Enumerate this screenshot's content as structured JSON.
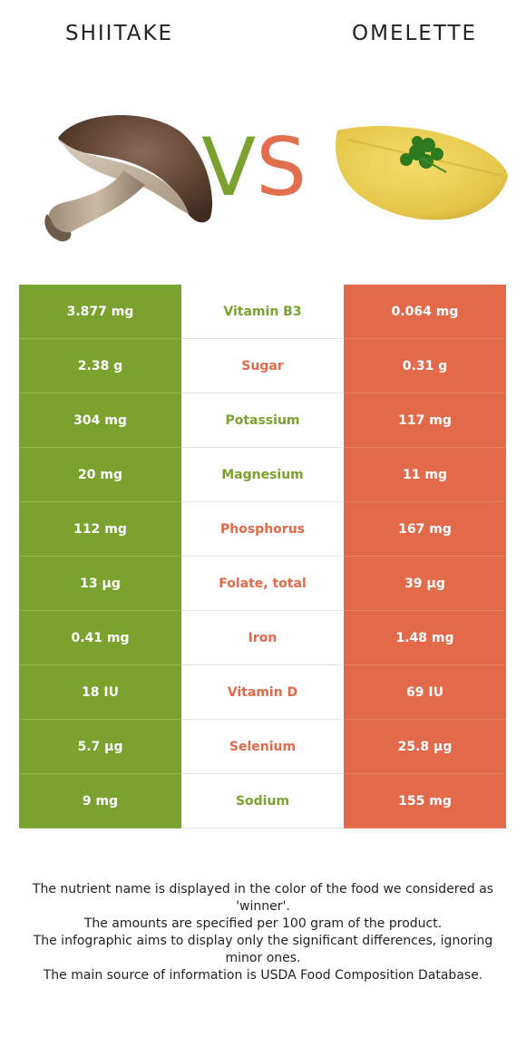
{
  "header": {
    "left_food": "SHIITAKE",
    "right_food": "OMELETTE",
    "vs_v": "V",
    "vs_s": "S"
  },
  "colors": {
    "left_winner": "#7aa22e",
    "right_winner": "#e2694a"
  },
  "rows": [
    {
      "left": "3.877 mg",
      "nutrient": "Vitamin B3",
      "right": "0.064 mg",
      "winner": "left"
    },
    {
      "left": "2.38 g",
      "nutrient": "Sugar",
      "right": "0.31 g",
      "winner": "right"
    },
    {
      "left": "304 mg",
      "nutrient": "Potassium",
      "right": "117 mg",
      "winner": "left"
    },
    {
      "left": "20 mg",
      "nutrient": "Magnesium",
      "right": "11 mg",
      "winner": "left"
    },
    {
      "left": "112 mg",
      "nutrient": "Phosphorus",
      "right": "167 mg",
      "winner": "right"
    },
    {
      "left": "13 µg",
      "nutrient": "Folate, total",
      "right": "39 µg",
      "winner": "right"
    },
    {
      "left": "0.41 mg",
      "nutrient": "Iron",
      "right": "1.48 mg",
      "winner": "right"
    },
    {
      "left": "18 IU",
      "nutrient": "Vitamin D",
      "right": "69 IU",
      "winner": "right"
    },
    {
      "left": "5.7 µg",
      "nutrient": "Selenium",
      "right": "25.8 µg",
      "winner": "right"
    },
    {
      "left": "9 mg",
      "nutrient": "Sodium",
      "right": "155 mg",
      "winner": "left"
    }
  ],
  "notes": [
    "The nutrient name is displayed in the color of the food we considered as 'winner'.",
    "The amounts are specified per 100 gram of the product.",
    "The infographic aims to display only the significant differences, ignoring minor ones.",
    "The main source of information is USDA Food Composition Database."
  ]
}
